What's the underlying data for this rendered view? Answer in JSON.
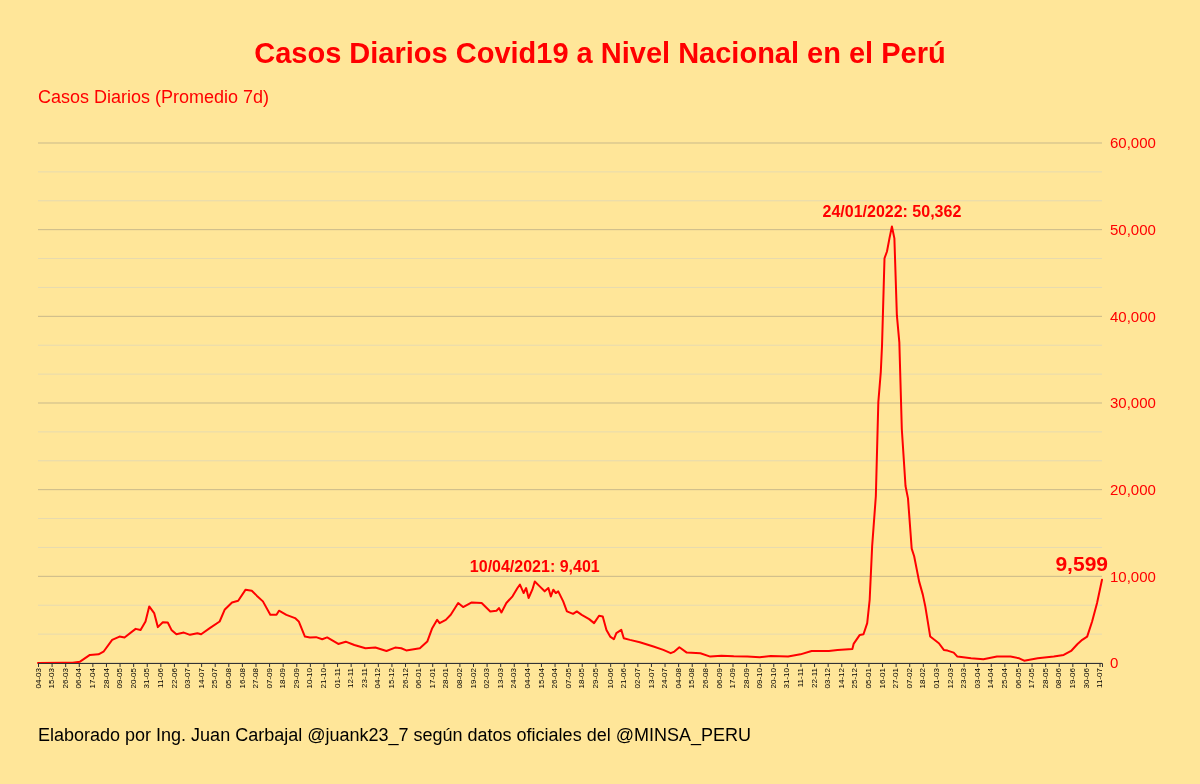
{
  "chart_data": {
    "type": "line",
    "title": "Casos Diarios Covid19 a Nivel Nacional en el Perú",
    "ylabel": "Casos Diarios (Promedio 7d)",
    "x": [
      "2020-03-04",
      "2020-03-24",
      "2020-04-01",
      "2020-04-07",
      "2020-04-15",
      "2020-04-22",
      "2020-04-26",
      "2020-05-03",
      "2020-05-09",
      "2020-05-13",
      "2020-05-22",
      "2020-05-26",
      "2020-05-30",
      "2020-06-02",
      "2020-06-06",
      "2020-06-09",
      "2020-06-13",
      "2020-06-17",
      "2020-06-20",
      "2020-06-24",
      "2020-06-30",
      "2020-07-05",
      "2020-07-11",
      "2020-07-14",
      "2020-07-21",
      "2020-07-29",
      "2020-08-02",
      "2020-08-08",
      "2020-08-13",
      "2020-08-19",
      "2020-08-24",
      "2020-08-28",
      "2020-09-02",
      "2020-09-08",
      "2020-09-13",
      "2020-09-15",
      "2020-09-21",
      "2020-09-28",
      "2020-10-01",
      "2020-10-06",
      "2020-10-10",
      "2020-10-15",
      "2020-10-20",
      "2020-10-24",
      "2020-11-02",
      "2020-11-08",
      "2020-11-15",
      "2020-11-24",
      "2020-12-02",
      "2020-12-11",
      "2020-12-18",
      "2020-12-23",
      "2020-12-27",
      "2021-01-07",
      "2021-01-13",
      "2021-01-17",
      "2021-01-21",
      "2021-01-23",
      "2021-01-28",
      "2021-02-01",
      "2021-02-07",
      "2021-02-11",
      "2021-02-18",
      "2021-02-26",
      "2021-03-05",
      "2021-03-10",
      "2021-03-12",
      "2021-03-14",
      "2021-03-18",
      "2021-03-23",
      "2021-03-27",
      "2021-03-29",
      "2021-04-01",
      "2021-04-03",
      "2021-04-05",
      "2021-04-08",
      "2021-04-10",
      "2021-04-14",
      "2021-04-18",
      "2021-04-21",
      "2021-04-23",
      "2021-04-25",
      "2021-04-27",
      "2021-04-29",
      "2021-05-03",
      "2021-05-06",
      "2021-05-11",
      "2021-05-14",
      "2021-05-18",
      "2021-05-24",
      "2021-05-28",
      "2021-06-01",
      "2021-06-04",
      "2021-06-07",
      "2021-06-10",
      "2021-06-13",
      "2021-06-15",
      "2021-06-19",
      "2021-06-21",
      "2021-06-26",
      "2021-07-04",
      "2021-07-15",
      "2021-07-23",
      "2021-07-29",
      "2021-08-01",
      "2021-08-05",
      "2021-08-11",
      "2021-08-22",
      "2021-08-30",
      "2021-09-08",
      "2021-09-18",
      "2021-09-29",
      "2021-10-09",
      "2021-10-18",
      "2021-11-01",
      "2021-11-11",
      "2021-11-20",
      "2021-12-04",
      "2021-12-11",
      "2021-12-23",
      "2021-12-24",
      "2021-12-29",
      "2022-01-01",
      "2022-01-04",
      "2022-01-06",
      "2022-01-08",
      "2022-01-11",
      "2022-01-13",
      "2022-01-15",
      "2022-01-16",
      "2022-01-18",
      "2022-01-20",
      "2022-01-22",
      "2022-01-24",
      "2022-01-26",
      "2022-01-28",
      "2022-01-30",
      "2022-02-01",
      "2022-02-04",
      "2022-02-06",
      "2022-02-09",
      "2022-02-11",
      "2022-02-15",
      "2022-02-18",
      "2022-02-20",
      "2022-02-24",
      "2022-03-03",
      "2022-03-07",
      "2022-03-10",
      "2022-03-15",
      "2022-03-18",
      "2022-03-29",
      "2022-04-08",
      "2022-04-19",
      "2022-04-30",
      "2022-05-07",
      "2022-05-11",
      "2022-05-22",
      "2022-06-04",
      "2022-06-12",
      "2022-06-18",
      "2022-06-23",
      "2022-06-27",
      "2022-07-01",
      "2022-07-05",
      "2022-07-09",
      "2022-07-13"
    ],
    "series": [
      {
        "color": "#ff0000",
        "values": [
          0,
          20,
          30,
          150,
          930,
          1000,
          1300,
          2670,
          3050,
          2950,
          3940,
          3800,
          4790,
          6530,
          5760,
          4140,
          4710,
          4680,
          3820,
          3320,
          3510,
          3250,
          3440,
          3320,
          4020,
          4790,
          6140,
          6990,
          7180,
          8460,
          8340,
          7770,
          7110,
          5560,
          5560,
          6030,
          5560,
          5180,
          4790,
          3050,
          2950,
          2980,
          2740,
          2950,
          2200,
          2460,
          2080,
          1700,
          1780,
          1390,
          1780,
          1700,
          1450,
          1700,
          2470,
          4020,
          4980,
          4600,
          4980,
          5560,
          6920,
          6450,
          6990,
          6920,
          5950,
          6030,
          6340,
          5830,
          6920,
          7690,
          8650,
          9040,
          8070,
          8650,
          7500,
          8460,
          9401,
          8840,
          8270,
          8650,
          7690,
          8460,
          8070,
          8270,
          7110,
          5950,
          5670,
          5950,
          5560,
          5060,
          4600,
          5450,
          5370,
          3820,
          3050,
          2740,
          3440,
          3820,
          2860,
          2670,
          2400,
          1900,
          1510,
          1130,
          1320,
          1820,
          1200,
          1130,
          740,
          850,
          780,
          740,
          660,
          810,
          740,
          1000,
          1390,
          1390,
          1510,
          1620,
          2200,
          3240,
          3320,
          4600,
          7300,
          13480,
          19270,
          30100,
          33580,
          36660,
          46700,
          47480,
          49000,
          50362,
          49000,
          40130,
          37000,
          27000,
          20430,
          19000,
          13200,
          12320,
          9420,
          7890,
          6530,
          3050,
          2280,
          1510,
          1430,
          1200,
          740,
          540,
          430,
          740,
          740,
          540,
          270,
          540,
          740,
          930,
          1390,
          2160,
          2670,
          3050,
          4790,
          6920,
          9599
        ]
      }
    ],
    "xlim": [
      "2020-03-04",
      "2022-07-13"
    ],
    "xticks": [
      {
        "value": "2020-03-04",
        "label": "04-03"
      },
      {
        "value": "2020-03-15",
        "label": "15-03"
      },
      {
        "value": "2020-03-26",
        "label": "26-03"
      },
      {
        "value": "2020-04-06",
        "label": "06-04"
      },
      {
        "value": "2020-04-17",
        "label": "17-04"
      },
      {
        "value": "2020-04-28",
        "label": "28-04"
      },
      {
        "value": "2020-05-09",
        "label": "09-05"
      },
      {
        "value": "2020-05-20",
        "label": "20-05"
      },
      {
        "value": "2020-05-31",
        "label": "31-05"
      },
      {
        "value": "2020-06-11",
        "label": "11-06"
      },
      {
        "value": "2020-06-22",
        "label": "22-06"
      },
      {
        "value": "2020-07-03",
        "label": "03-07"
      },
      {
        "value": "2020-07-14",
        "label": "14-07"
      },
      {
        "value": "2020-07-25",
        "label": "25-07"
      },
      {
        "value": "2020-08-05",
        "label": "05-08"
      },
      {
        "value": "2020-08-16",
        "label": "16-08"
      },
      {
        "value": "2020-08-27",
        "label": "27-08"
      },
      {
        "value": "2020-09-07",
        "label": "07-09"
      },
      {
        "value": "2020-09-18",
        "label": "18-09"
      },
      {
        "value": "2020-09-29",
        "label": "29-09"
      },
      {
        "value": "2020-10-10",
        "label": "10-10"
      },
      {
        "value": "2020-10-21",
        "label": "21-10"
      },
      {
        "value": "2020-11-01",
        "label": "01-11"
      },
      {
        "value": "2020-11-12",
        "label": "12-11"
      },
      {
        "value": "2020-11-23",
        "label": "23-11"
      },
      {
        "value": "2020-12-04",
        "label": "04-12"
      },
      {
        "value": "2020-12-15",
        "label": "15-12"
      },
      {
        "value": "2020-12-26",
        "label": "26-12"
      },
      {
        "value": "2021-01-06",
        "label": "06-01"
      },
      {
        "value": "2021-01-17",
        "label": "17-01"
      },
      {
        "value": "2021-01-28",
        "label": "28-01"
      },
      {
        "value": "2021-02-08",
        "label": "08-02"
      },
      {
        "value": "2021-02-19",
        "label": "19-02"
      },
      {
        "value": "2021-03-02",
        "label": "02-03"
      },
      {
        "value": "2021-03-13",
        "label": "13-03"
      },
      {
        "value": "2021-03-24",
        "label": "24-03"
      },
      {
        "value": "2021-04-04",
        "label": "04-04"
      },
      {
        "value": "2021-04-15",
        "label": "15-04"
      },
      {
        "value": "2021-04-26",
        "label": "26-04"
      },
      {
        "value": "2021-05-07",
        "label": "07-05"
      },
      {
        "value": "2021-05-18",
        "label": "18-05"
      },
      {
        "value": "2021-05-29",
        "label": "29-05"
      },
      {
        "value": "2021-06-10",
        "label": "10-06"
      },
      {
        "value": "2021-06-21",
        "label": "21-06"
      },
      {
        "value": "2021-07-02",
        "label": "02-07"
      },
      {
        "value": "2021-07-13",
        "label": "13-07"
      },
      {
        "value": "2021-07-24",
        "label": "24-07"
      },
      {
        "value": "2021-08-04",
        "label": "04-08"
      },
      {
        "value": "2021-08-15",
        "label": "15-08"
      },
      {
        "value": "2021-08-26",
        "label": "26-08"
      },
      {
        "value": "2021-09-06",
        "label": "06-09"
      },
      {
        "value": "2021-09-17",
        "label": "17-09"
      },
      {
        "value": "2021-09-28",
        "label": "28-09"
      },
      {
        "value": "2021-10-09",
        "label": "09-10"
      },
      {
        "value": "2021-10-20",
        "label": "20-10"
      },
      {
        "value": "2021-10-31",
        "label": "31-10"
      },
      {
        "value": "2021-11-11",
        "label": "11-11"
      },
      {
        "value": "2021-11-22",
        "label": "22-11"
      },
      {
        "value": "2021-12-03",
        "label": "03-12"
      },
      {
        "value": "2021-12-14",
        "label": "14-12"
      },
      {
        "value": "2021-12-25",
        "label": "25-12"
      },
      {
        "value": "2022-01-05",
        "label": "05-01"
      },
      {
        "value": "2022-01-16",
        "label": "16-01"
      },
      {
        "value": "2022-01-27",
        "label": "27-01"
      },
      {
        "value": "2022-02-07",
        "label": "07-02"
      },
      {
        "value": "2022-02-18",
        "label": "18-02"
      },
      {
        "value": "2022-03-01",
        "label": "01-03"
      },
      {
        "value": "2022-03-12",
        "label": "12-03"
      },
      {
        "value": "2022-03-23",
        "label": "23-03"
      },
      {
        "value": "2022-04-03",
        "label": "03-04"
      },
      {
        "value": "2022-04-14",
        "label": "14-04"
      },
      {
        "value": "2022-04-25",
        "label": "25-04"
      },
      {
        "value": "2022-05-06",
        "label": "06-05"
      },
      {
        "value": "2022-05-17",
        "label": "17-05"
      },
      {
        "value": "2022-05-28",
        "label": "28-05"
      },
      {
        "value": "2022-06-08",
        "label": "08-06"
      },
      {
        "value": "2022-06-19",
        "label": "19-06"
      },
      {
        "value": "2022-06-30",
        "label": "30-06"
      },
      {
        "value": "2022-07-11",
        "label": "11-07"
      }
    ],
    "ylim": [
      0,
      60000
    ],
    "yticks": [
      0,
      {
        "value": 3333,
        "label": null
      },
      {
        "value": 6667,
        "label": null
      },
      {
        "value": 10000,
        "label": "10,000"
      },
      {
        "value": 13333,
        "label": null
      },
      {
        "value": 16667,
        "label": null
      },
      {
        "value": 20000,
        "label": "20,000"
      },
      {
        "value": 23333,
        "label": null
      },
      {
        "value": 26667,
        "label": null
      },
      {
        "value": 30000,
        "label": "30,000"
      },
      {
        "value": 33333,
        "label": null
      },
      {
        "value": 36667,
        "label": null
      },
      {
        "value": 40000,
        "label": "40,000"
      },
      {
        "value": 43333,
        "label": null
      },
      {
        "value": 46667,
        "label": null
      },
      {
        "value": 50000,
        "label": "50,000"
      },
      {
        "value": 53333,
        "label": null
      },
      {
        "value": 56667,
        "label": null
      },
      {
        "value": 60000,
        "label": "60,000"
      }
    ],
    "grid": "y",
    "annotations": [
      {
        "text": "10/04/2021: 9,401",
        "x": "2021-04-10",
        "y": 9401
      },
      {
        "text": "24/01/2022: 50,362",
        "x": "2022-01-24",
        "y": 50362
      },
      {
        "text": "9,599",
        "x": "2022-07-13",
        "y": 9599
      },
      "Elaborado por Ing. Juan Carbajal @juank23_7 según datos oficiales del @MINSA_PERU"
    ]
  }
}
